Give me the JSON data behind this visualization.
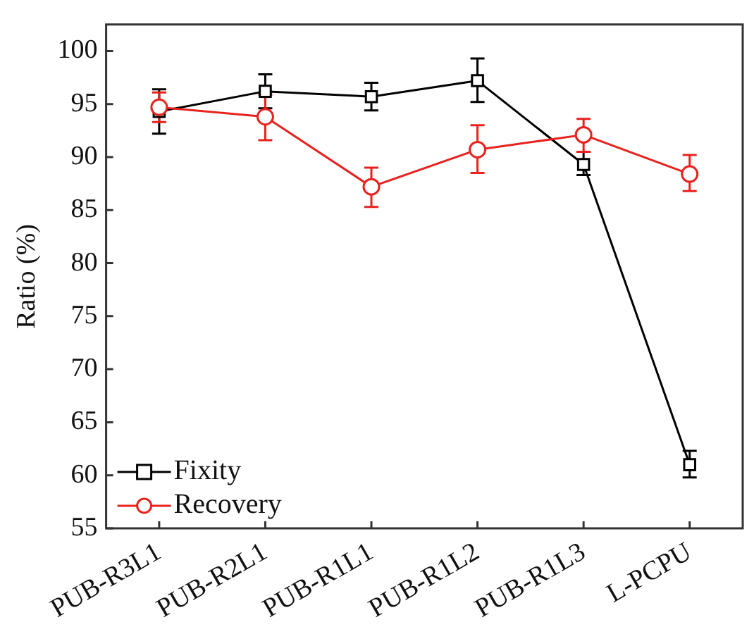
{
  "chart_data": {
    "type": "line",
    "ylabel": "Ratio (%)",
    "categories": [
      "PUB-R3L1",
      "PUB-R2L1",
      "PUB-R1L1",
      "PUB-R1L2",
      "PUB-R1L3",
      "L-PCPU"
    ],
    "ylim": [
      55,
      102.5
    ],
    "yticks": [
      55,
      60,
      65,
      70,
      75,
      80,
      85,
      90,
      95,
      100
    ],
    "grid": false,
    "legend": "bottom left",
    "line_style": "solid",
    "series": [
      {
        "name": "Fixity",
        "color": "#000000",
        "marker": "square",
        "values": [
          94.3,
          96.2,
          95.7,
          97.2,
          89.3,
          61.0
        ],
        "errors": [
          [
            92.2,
            96.4
          ],
          [
            94.6,
            97.8
          ],
          [
            94.4,
            97.0
          ],
          [
            95.2,
            99.3
          ],
          [
            88.3,
            90.5
          ],
          [
            59.8,
            62.3
          ]
        ]
      },
      {
        "name": "Recovery",
        "color": "#e8221e",
        "marker": "circle",
        "values": [
          94.7,
          93.8,
          87.2,
          90.7,
          92.1,
          88.4
        ],
        "errors": [
          [
            93.3,
            96.1
          ],
          [
            91.6,
            95.9
          ],
          [
            85.3,
            89.0
          ],
          [
            88.5,
            93.0
          ],
          [
            90.5,
            93.6
          ],
          [
            86.8,
            90.2
          ]
        ]
      }
    ]
  }
}
